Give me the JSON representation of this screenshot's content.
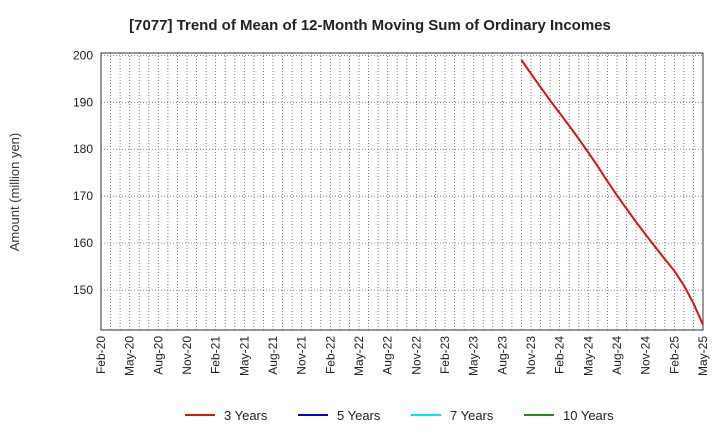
{
  "chart_data": {
    "type": "line",
    "title": "[7077]  Trend of Mean of 12-Month Moving Sum of Ordinary Incomes",
    "ylabel": "Amount (million yen)",
    "xlabel": "",
    "x_ticks": [
      "Feb-20",
      "May-20",
      "Aug-20",
      "Nov-20",
      "Feb-21",
      "May-21",
      "Aug-21",
      "Nov-21",
      "Feb-22",
      "May-22",
      "Aug-22",
      "Nov-22",
      "Feb-23",
      "May-23",
      "Aug-23",
      "Nov-23",
      "Feb-24",
      "May-24",
      "Aug-24",
      "Nov-24",
      "Feb-25",
      "May-25"
    ],
    "y_ticks": [
      150,
      160,
      170,
      180,
      190,
      200
    ],
    "ylim": [
      141.5,
      200.5
    ],
    "grid": true,
    "legend_position": "bottom",
    "series": [
      {
        "name": "3 Years",
        "color": "#dd1111",
        "points": [
          {
            "x": "Oct-23",
            "y": 199.0
          },
          {
            "x": "Nov-23",
            "y": 196.1
          },
          {
            "x": "Dec-23",
            "y": 193.2
          },
          {
            "x": "Jan-24",
            "y": 190.4
          },
          {
            "x": "Feb-24",
            "y": 187.7
          },
          {
            "x": "Mar-24",
            "y": 185.0
          },
          {
            "x": "Apr-24",
            "y": 182.2
          },
          {
            "x": "May-24",
            "y": 179.3
          },
          {
            "x": "Jun-24",
            "y": 176.3
          },
          {
            "x": "Jul-24",
            "y": 173.2
          },
          {
            "x": "Aug-24",
            "y": 170.2
          },
          {
            "x": "Sep-24",
            "y": 167.3
          },
          {
            "x": "Oct-24",
            "y": 164.5
          },
          {
            "x": "Nov-24",
            "y": 161.8
          },
          {
            "x": "Dec-24",
            "y": 159.2
          },
          {
            "x": "Jan-25",
            "y": 156.6
          },
          {
            "x": "Feb-25",
            "y": 154.1
          },
          {
            "x": "Mar-25",
            "y": 151.0
          },
          {
            "x": "Apr-25",
            "y": 147.2
          },
          {
            "x": "May-25",
            "y": 142.6
          }
        ]
      },
      {
        "name": "5 Years",
        "color": "#0000cc",
        "points": []
      },
      {
        "name": "7 Years",
        "color": "#00e5ee",
        "points": []
      },
      {
        "name": "10 Years",
        "color": "#228822",
        "points": []
      }
    ]
  }
}
